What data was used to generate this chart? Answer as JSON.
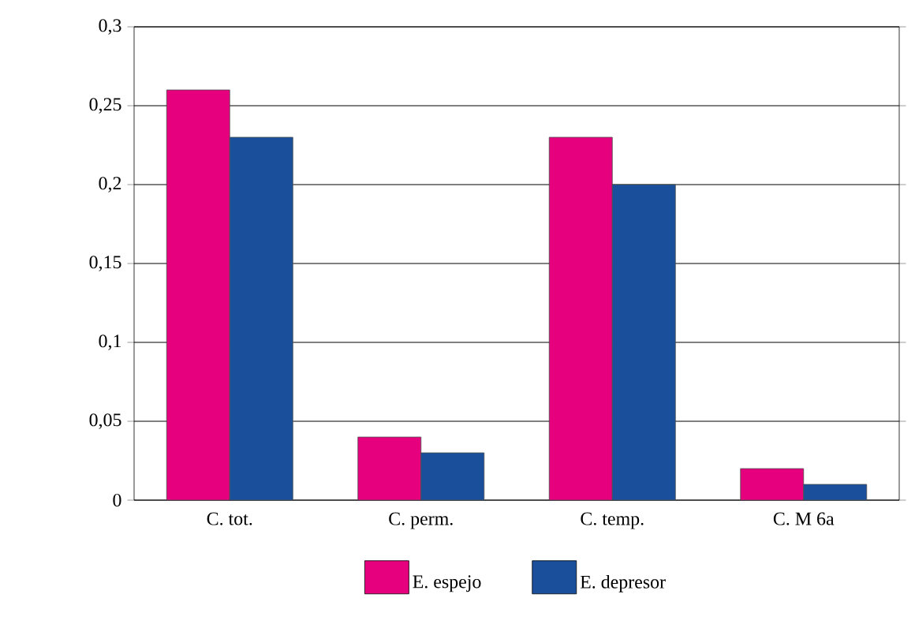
{
  "chart_data": {
    "type": "bar",
    "categories": [
      "C. tot.",
      "C. perm.",
      "C. temp.",
      "C. M 6a"
    ],
    "series": [
      {
        "name": "E. espejo",
        "color": "#e6007e",
        "values": [
          0.26,
          0.04,
          0.23,
          0.02
        ]
      },
      {
        "name": "E. depresor",
        "color": "#1a4f9c",
        "values": [
          0.23,
          0.03,
          0.2,
          0.01
        ]
      }
    ],
    "ylim": [
      0,
      0.3
    ],
    "yticks": [
      0,
      {
        "value": 0.05,
        "label": "0,05"
      },
      {
        "value": 0.1,
        "label": "0,1"
      },
      {
        "value": 0.15,
        "label": "0,15"
      },
      {
        "value": 0.2,
        "label": "0,2"
      },
      {
        "value": 0.25,
        "label": "0,25"
      },
      {
        "value": 0.3,
        "label": "0,3"
      }
    ],
    "grid": "y",
    "legend": "bottom"
  }
}
